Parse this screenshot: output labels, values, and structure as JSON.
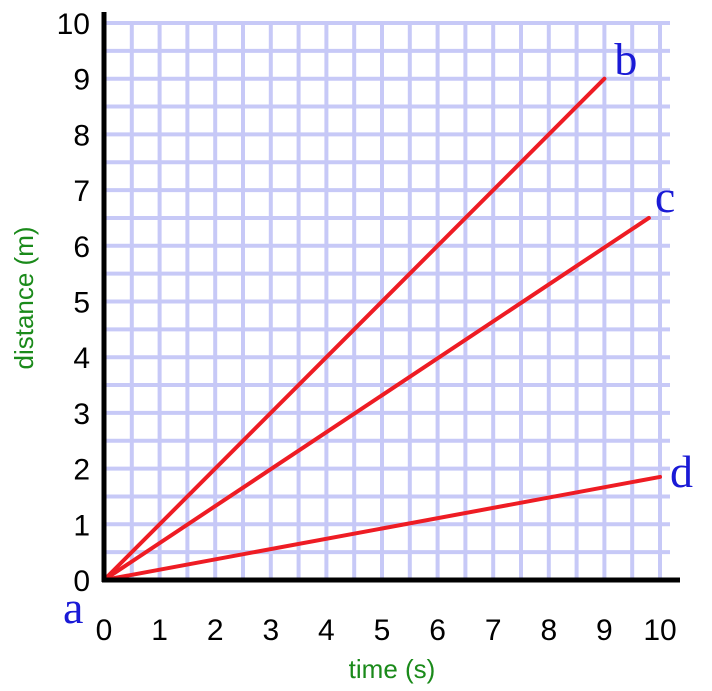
{
  "chart_data": {
    "type": "line",
    "xlabel": "time (s)",
    "ylabel": "distance (m)",
    "xlim": [
      0,
      10
    ],
    "ylim": [
      0,
      10
    ],
    "x_ticks": [
      "0",
      "1",
      "2",
      "3",
      "4",
      "5",
      "6",
      "7",
      "8",
      "9",
      "10"
    ],
    "y_ticks": [
      "0",
      "1",
      "2",
      "3",
      "4",
      "5",
      "6",
      "7",
      "8",
      "9",
      "10"
    ],
    "grid": true,
    "origin_label": "a",
    "series": [
      {
        "label": "b",
        "x": [
          0,
          9
        ],
        "y": [
          0,
          9
        ]
      },
      {
        "label": "c",
        "x": [
          0,
          9.8
        ],
        "y": [
          0,
          6.5
        ]
      },
      {
        "label": "d",
        "x": [
          0,
          10
        ],
        "y": [
          0,
          1.85
        ]
      }
    ],
    "colors": {
      "line": "#ee1c24",
      "grid": "#c7c9f7",
      "axis": "#000000",
      "axis_label": "#1a8a1a",
      "point_label": "#1a1ad6"
    }
  }
}
